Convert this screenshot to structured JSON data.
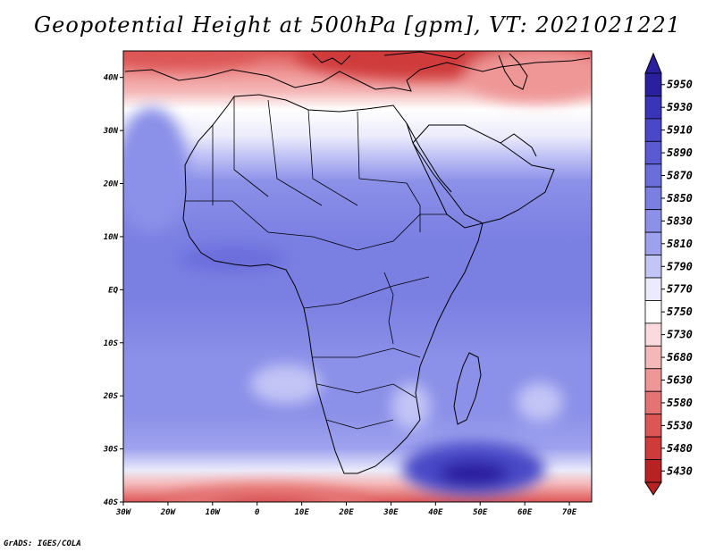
{
  "title": "Geopotential Height at 500hPa [gpm], VT: 2021021221",
  "credit": "GrADS: IGES/COLA",
  "map": {
    "lon_range": [
      -30,
      75
    ],
    "lat_range": [
      -40,
      45
    ],
    "lon_ticks": [
      {
        "value": -30,
        "label": "30W"
      },
      {
        "value": -20,
        "label": "20W"
      },
      {
        "value": -10,
        "label": "10W"
      },
      {
        "value": 0,
        "label": "0"
      },
      {
        "value": 10,
        "label": "10E"
      },
      {
        "value": 20,
        "label": "20E"
      },
      {
        "value": 30,
        "label": "30E"
      },
      {
        "value": 40,
        "label": "40E"
      },
      {
        "value": 50,
        "label": "50E"
      },
      {
        "value": 60,
        "label": "60E"
      },
      {
        "value": 70,
        "label": "70E"
      }
    ],
    "lat_ticks": [
      {
        "value": 40,
        "label": "40N"
      },
      {
        "value": 30,
        "label": "30N"
      },
      {
        "value": 20,
        "label": "20N"
      },
      {
        "value": 10,
        "label": "10N"
      },
      {
        "value": 0,
        "label": "EQ"
      },
      {
        "value": -10,
        "label": "10S"
      },
      {
        "value": -20,
        "label": "20S"
      },
      {
        "value": -30,
        "label": "30S"
      },
      {
        "value": -40,
        "label": "40S"
      }
    ]
  },
  "colorbar": {
    "levels": [
      "5950",
      "5930",
      "5910",
      "5890",
      "5870",
      "5850",
      "5830",
      "5810",
      "5790",
      "5770",
      "5750",
      "5730",
      "5680",
      "5630",
      "5580",
      "5530",
      "5480",
      "5430"
    ],
    "colors": [
      "#2a1f9f",
      "#3a34b8",
      "#4a48c8",
      "#5a5bd4",
      "#6a6ddc",
      "#7a7fe2",
      "#8b90e8",
      "#9ea2ee",
      "#c3c5f6",
      "#ebebfb",
      "#ffffff",
      "#fadadd",
      "#f5b8b8",
      "#ef9696",
      "#e57373",
      "#dd5656",
      "#cf3a3a",
      "#b82222"
    ],
    "top_color": "#2a1f9f",
    "bottom_color": "#b82222"
  }
}
